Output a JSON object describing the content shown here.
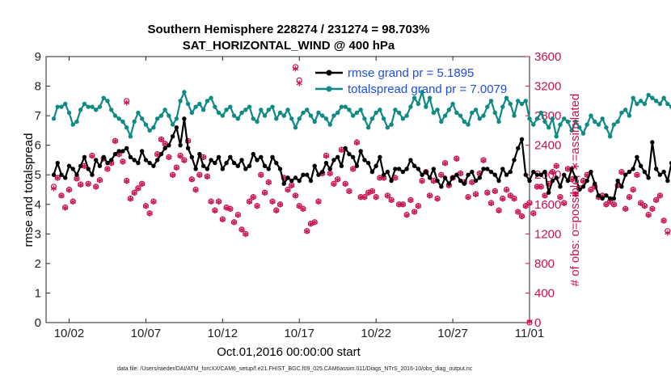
{
  "colors": {
    "rmse": "#000000",
    "spread": "#0f8a85",
    "obs": "#c8104f",
    "legend_text": "#1d4fe0"
  },
  "footnote": "data file: /Users/raeder/DAI/ATM_forcXX/CAM6_setup/f.e21.FHIST_BGC.f09_025.CAM6assim.011/Diags_NTrS_2016-10/obs_diag_output.nc",
  "chart_data": {
    "type": "line",
    "title": "Southern Hemisphere 228274 / 231274 = 98.703%",
    "subtitle": "SAT_HORIZONTAL_WIND @ 400 hPa",
    "xlabel": "Oct.01,2016 00:00:00 start",
    "ylabel": "rmse and totalspread",
    "ylabel_right": "# of obs: o=possible; ∗=assimilated",
    "x_unit": "days since Oct.01,2016 00:00",
    "xlim": [
      -0.5,
      31
    ],
    "ylim": [
      0,
      9
    ],
    "ylim_right": [
      0,
      3600
    ],
    "yticks": [
      "0",
      "1",
      "2",
      "3",
      "4",
      "5",
      "6",
      "7",
      "8",
      "9"
    ],
    "yticks_right": [
      "0",
      "400",
      "800",
      "1200",
      "1600",
      "2000",
      "2400",
      "2800",
      "3200",
      "3600"
    ],
    "xticks": [
      {
        "x": 1,
        "label": "10/02"
      },
      {
        "x": 6,
        "label": "10/07"
      },
      {
        "x": 11,
        "label": "10/12"
      },
      {
        "x": 16,
        "label": "10/17"
      },
      {
        "x": 21,
        "label": "10/22"
      },
      {
        "x": 26,
        "label": "10/27"
      },
      {
        "x": 31,
        "label": "11/01"
      }
    ],
    "legend_position": "top-right",
    "series": [
      {
        "name": "rmse grand pr = 5.1895",
        "axis": "left",
        "x_start": 0,
        "x_step": 0.25,
        "values": [
          5.0,
          5.4,
          5.0,
          4.9,
          5.3,
          5.2,
          5.0,
          5.3,
          5.6,
          5.2,
          5.0,
          5.5,
          5.3,
          5.6,
          5.4,
          5.5,
          5.7,
          5.8,
          5.8,
          5.9,
          5.6,
          5.5,
          5.4,
          5.8,
          5.5,
          5.4,
          5.3,
          5.5,
          5.7,
          5.9,
          6.0,
          6.3,
          6.6,
          6.0,
          6.9,
          5.9,
          5.6,
          5.2,
          5.7,
          5.3,
          5.2,
          5.5,
          5.4,
          5.6,
          5.2,
          5.4,
          5.6,
          5.4,
          5.3,
          5.5,
          5.2,
          5.3,
          5.7,
          5.5,
          5.6,
          5.3,
          5.2,
          5.6,
          5.4,
          5.2,
          4.7,
          4.9,
          4.8,
          4.9,
          4.8,
          5.0,
          5.0,
          4.8,
          5.3,
          5.0,
          5.1,
          5.4,
          5.2,
          5.5,
          5.6,
          5.3,
          5.9,
          5.7,
          5.6,
          5.3,
          5.8,
          5.5,
          5.4,
          5.1,
          5.3,
          5.6,
          5.0,
          5.1,
          4.8,
          5.2,
          5.2,
          5.1,
          5.2,
          5.5,
          5.3,
          5.2,
          5.0,
          5.1,
          4.9,
          5.2,
          4.8,
          4.6,
          4.9,
          4.7,
          4.9,
          5.0,
          4.8,
          4.7,
          5.0,
          5.1,
          4.8,
          4.9,
          5.2,
          5.2,
          5.1,
          5.0,
          4.8,
          5.2,
          5.0,
          5.1,
          5.5,
          5.9,
          6.2,
          5.0,
          4.8,
          5.1,
          5.0,
          5.0,
          5.1,
          4.4,
          4.8,
          4.9,
          4.6,
          5.0,
          4.8,
          5.2,
          4.9,
          4.5,
          4.6,
          4.8,
          5.1,
          4.7,
          4.3,
          4.2,
          4.3,
          4.2,
          4.2,
          4.8,
          4.6,
          5.0,
          5.1,
          5.2,
          5.6,
          5.3,
          5.1,
          4.9,
          6.1,
          5.2,
          5.0,
          5.1,
          4.8,
          5.4,
          5.6
        ]
      },
      {
        "name": "totalspread grand pr = 7.0079",
        "axis": "left",
        "x_start": 0,
        "x_step": 0.25,
        "values": [
          6.9,
          7.3,
          7.3,
          7.4,
          7.1,
          6.7,
          6.8,
          7.2,
          7.4,
          7.3,
          7.3,
          7.2,
          7.3,
          7.6,
          7.5,
          7.2,
          7.0,
          6.9,
          6.8,
          6.6,
          6.3,
          6.8,
          7.1,
          6.9,
          6.7,
          6.5,
          6.6,
          6.9,
          7.0,
          7.2,
          7.0,
          6.7,
          6.9,
          7.5,
          7.8,
          7.4,
          7.1,
          7.3,
          7.4,
          7.2,
          7.5,
          7.6,
          7.3,
          7.1,
          7.0,
          7.2,
          7.3,
          7.0,
          6.9,
          7.1,
          7.2,
          7.3,
          6.9,
          6.8,
          7.2,
          7.0,
          7.2,
          7.3,
          6.9,
          7.1,
          7.0,
          7.2,
          6.9,
          6.6,
          6.9,
          7.1,
          7.2,
          7.0,
          6.8,
          7.1,
          7.0,
          6.9,
          6.7,
          7.0,
          7.1,
          7.3,
          7.3,
          7.2,
          7.0,
          7.1,
          7.2,
          6.9,
          6.6,
          6.9,
          7.1,
          7.2,
          6.9,
          6.6,
          6.7,
          7.2,
          7.1,
          6.9,
          7.0,
          7.3,
          7.6,
          7.4,
          7.8,
          7.3,
          7.6,
          7.1,
          7.2,
          6.8,
          7.0,
          7.2,
          7.4,
          7.1,
          7.0,
          6.8,
          6.7,
          7.1,
          7.2,
          6.9,
          7.0,
          7.3,
          7.5,
          7.1,
          6.8,
          7.3,
          7.6,
          7.4,
          7.0,
          7.5,
          7.4,
          7.5,
          6.9,
          6.7,
          6.9,
          7.1,
          6.8,
          6.6,
          6.9,
          6.3,
          6.7,
          6.9,
          6.8,
          6.5,
          6.8,
          6.6,
          6.4,
          6.7,
          7.0,
          6.8,
          6.7,
          6.9,
          6.6,
          6.3,
          6.7,
          6.8,
          7.1,
          7.2,
          7.0,
          7.6,
          7.4,
          7.5,
          7.4,
          7.7,
          7.6,
          7.5,
          7.4,
          7.6,
          7.4,
          7.3
        ]
      }
    ],
    "obs_possible": {
      "name": "# of obs possible",
      "marker": "o",
      "axis": "right",
      "x_start": 0,
      "x_step": 0.25,
      "values": [
        1840,
        1960,
        1720,
        1560,
        1800,
        1640,
        1950,
        1870,
        2120,
        1880,
        2260,
        1840,
        1930,
        2220,
        2080,
        2160,
        2460,
        2280,
        2180,
        1920,
        1680,
        1760,
        1820,
        1880,
        1580,
        1480,
        1640,
        2280,
        2480,
        2420,
        2240,
        2000,
        2100,
        2260,
        2200,
        2460,
        1940,
        1800,
        2000,
        2240,
        1980,
        1640,
        1520,
        1640,
        1400,
        1560,
        1540,
        1360,
        1460,
        1260,
        1200,
        1640,
        1700,
        1580,
        2000,
        1760,
        1900,
        1640,
        1520,
        1600,
        1960,
        1800,
        1860,
        1720,
        1580,
        1540,
        1240,
        1340,
        1360,
        1640,
        2020,
        2260,
        2020,
        1880,
        1940,
        2340,
        1880,
        1780,
        2080,
        2440,
        1700,
        1700,
        1760,
        1780,
        1700,
        1960,
        1960,
        1720,
        1660,
        1960,
        1600,
        1600,
        1460,
        1660,
        1500,
        1580,
        1920,
        2040,
        1720,
        1920,
        1680,
        2000,
        2160,
        1860,
        1960,
        2220,
        2020,
        1900,
        1700,
        1900,
        1740,
        2020,
        2200,
        1760,
        1620,
        1780,
        1520,
        1680,
        1800,
        1720,
        1680,
        1500,
        1440,
        1580,
        1620,
        1480,
        1840,
        1840,
        1720,
        1880,
        2040,
        2120,
        1700,
        1620,
        2080,
        1940,
        1740,
        1820,
        1920,
        2000,
        1800,
        1840,
        1700,
        1720,
        1600,
        1640,
        1600,
        1860,
        2040,
        1540,
        1700,
        1800,
        2000,
        1620,
        1580,
        1460,
        1540,
        1660,
        1720,
        1380,
        1240
      ]
    },
    "obs_assimilated": {
      "name": "# of obs assimilated",
      "marker": "*",
      "axis": "right",
      "x_start": 0,
      "x_step": 0.25,
      "values": [
        1800,
        1940,
        1700,
        1540,
        1780,
        1620,
        1930,
        1850,
        2100,
        1860,
        2240,
        1820,
        1910,
        2200,
        2060,
        2140,
        2440,
        2260,
        2160,
        1900,
        1660,
        1740,
        1800,
        1860,
        1560,
        1460,
        1620,
        2260,
        2460,
        2400,
        2220,
        1980,
        2080,
        2240,
        2180,
        2440,
        1920,
        1780,
        1980,
        2220,
        1960,
        1620,
        1500,
        1620,
        1380,
        1540,
        1520,
        1340,
        1440,
        1240,
        1180,
        1620,
        1680,
        1560,
        1980,
        1740,
        1880,
        1620,
        1500,
        1580,
        1940,
        1780,
        1840,
        1700,
        1560,
        1520,
        1220,
        1320,
        1340,
        1620,
        2000,
        2240,
        2000,
        1860,
        1920,
        2320,
        1860,
        1760,
        2060,
        2420,
        1680,
        1680,
        1740,
        1760,
        1680,
        1940,
        1940,
        1700,
        1640,
        1940,
        1580,
        1580,
        1440,
        1640,
        1480,
        1560,
        1900,
        2020,
        1700,
        1900,
        1660,
        1980,
        2140,
        1840,
        1940,
        2200,
        2000,
        1880,
        1680,
        1880,
        1720,
        2000,
        2180,
        1740,
        1600,
        1760,
        1500,
        1660,
        1780,
        1700,
        1660,
        1480,
        1420,
        1560,
        1600,
        1460,
        1820,
        1820,
        1700,
        1860,
        2020,
        2100,
        1680,
        1600,
        2060,
        1920,
        1720,
        1800,
        1900,
        1980,
        1780,
        1820,
        1680,
        1700,
        1580,
        1620,
        1580,
        1840,
        2020,
        1520,
        1680,
        1780,
        1980,
        1600,
        1560,
        1440,
        1520,
        1640,
        1700,
        1360,
        1200
      ],
      "outliers": [
        {
          "x": 15.75,
          "possible": 3460,
          "assimilated": 3420
        },
        {
          "x": 16.0,
          "possible": 3280,
          "assimilated": 3220
        },
        {
          "x": 4.75,
          "possible": 3000,
          "assimilated": 2960
        },
        {
          "x": 31.0,
          "possible": 0,
          "assimilated": 0
        }
      ]
    }
  }
}
